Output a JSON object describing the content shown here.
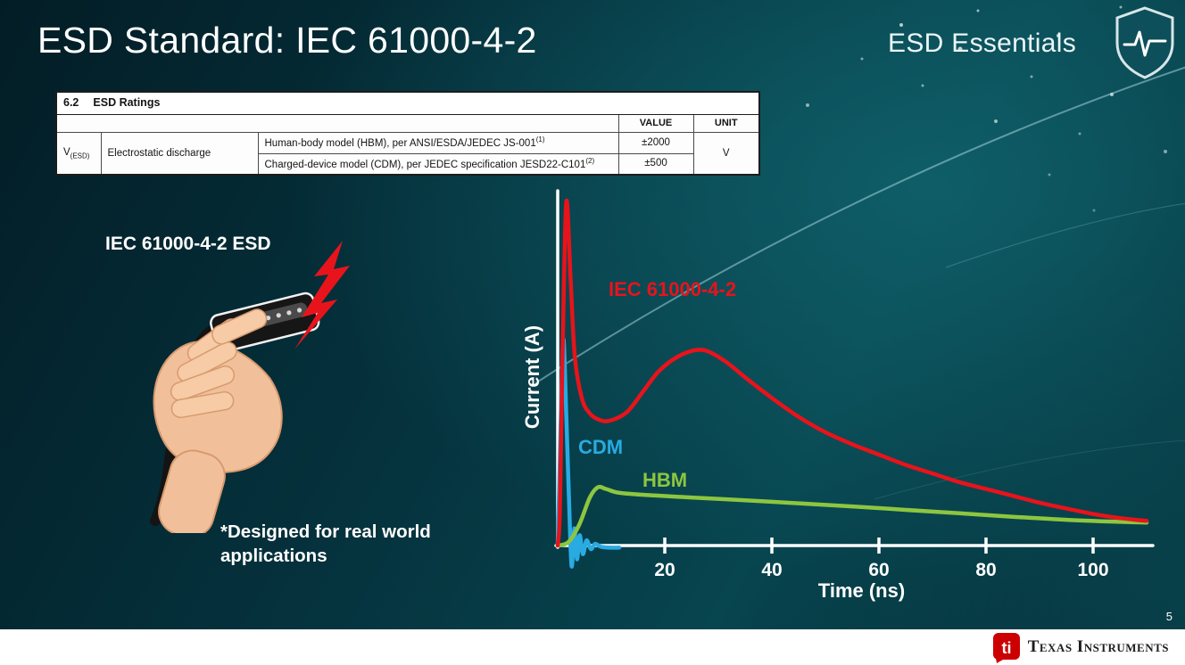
{
  "slide": {
    "title": "ESD Standard: IEC 61000-4-2",
    "brand": "ESD Essentials",
    "caption_heading": "IEC 61000-4-2 ESD",
    "note": "*Designed for real world applications",
    "page_number": "5"
  },
  "table": {
    "section": "6.2",
    "section_title": "ESD Ratings",
    "col_value": "VALUE",
    "col_unit": "UNIT",
    "param_symbol": "V",
    "param_symbol_sub": "(ESD)",
    "param_name": "Electrostatic discharge",
    "rows": [
      {
        "desc": "Human-body model (HBM), per ANSI/ESDA/JEDEC JS-001",
        "sup": "(1)",
        "value": "±2000"
      },
      {
        "desc": "Charged-device model (CDM), per JEDEC specification JESD22-C101",
        "sup": "(2)",
        "value": "±500"
      }
    ],
    "unit": "V"
  },
  "chart_data": {
    "type": "line",
    "title": "",
    "xlabel": "Time (ns)",
    "ylabel": "Current (A)",
    "xlim": [
      0,
      112
    ],
    "ylim": [
      -8,
      105
    ],
    "xticks": [
      20,
      40,
      60,
      80,
      100
    ],
    "yticks": [],
    "grid": false,
    "legend_position": "inline-labels",
    "series": [
      {
        "name": "IEC 61000-4-2",
        "color": "#e8131b",
        "points": [
          [
            0,
            0
          ],
          [
            0.4,
            10
          ],
          [
            0.9,
            55
          ],
          [
            1.6,
            100
          ],
          [
            2.4,
            78
          ],
          [
            3.2,
            55
          ],
          [
            4.5,
            43
          ],
          [
            6,
            38.5
          ],
          [
            8,
            36.5
          ],
          [
            10,
            36.5
          ],
          [
            13,
            39
          ],
          [
            16,
            45
          ],
          [
            19,
            51
          ],
          [
            23,
            55.5
          ],
          [
            27,
            57
          ],
          [
            31,
            54
          ],
          [
            35,
            49
          ],
          [
            40,
            43
          ],
          [
            45,
            37.5
          ],
          [
            50,
            33
          ],
          [
            55,
            29.5
          ],
          [
            60,
            26.5
          ],
          [
            65,
            23.5
          ],
          [
            70,
            21
          ],
          [
            75,
            18.5
          ],
          [
            80,
            16.5
          ],
          [
            85,
            14.5
          ],
          [
            90,
            12.5
          ],
          [
            95,
            10.8
          ],
          [
            100,
            9.2
          ],
          [
            105,
            8
          ],
          [
            110,
            7.2
          ]
        ]
      },
      {
        "name": "CDM",
        "color": "#29abe2",
        "points": [
          [
            0,
            0
          ],
          [
            0.3,
            18
          ],
          [
            0.7,
            45
          ],
          [
            1.1,
            60
          ],
          [
            1.6,
            38
          ],
          [
            2.1,
            14
          ],
          [
            2.6,
            -6
          ],
          [
            3.1,
            5
          ],
          [
            3.6,
            -4
          ],
          [
            4.1,
            3
          ],
          [
            4.7,
            -2.5
          ],
          [
            5.4,
            1.5
          ],
          [
            6.2,
            -1
          ],
          [
            7,
            0.5
          ],
          [
            8,
            -0.3
          ],
          [
            9.5,
            -0.6
          ],
          [
            11.5,
            -0.6
          ]
        ]
      },
      {
        "name": "HBM",
        "color": "#8dc63f",
        "points": [
          [
            0,
            0
          ],
          [
            2,
            1
          ],
          [
            4,
            6
          ],
          [
            6,
            14
          ],
          [
            7.5,
            17
          ],
          [
            9,
            16.5
          ],
          [
            11,
            15.5
          ],
          [
            14,
            15
          ],
          [
            18,
            14.6
          ],
          [
            25,
            14
          ],
          [
            35,
            13.2
          ],
          [
            45,
            12.3
          ],
          [
            55,
            11.4
          ],
          [
            65,
            10.4
          ],
          [
            75,
            9.4
          ],
          [
            85,
            8.4
          ],
          [
            95,
            7.5
          ],
          [
            105,
            6.9
          ],
          [
            110,
            6.7
          ]
        ]
      }
    ]
  },
  "footer": {
    "bug_text": "ti",
    "brand": "Texas Instruments"
  }
}
